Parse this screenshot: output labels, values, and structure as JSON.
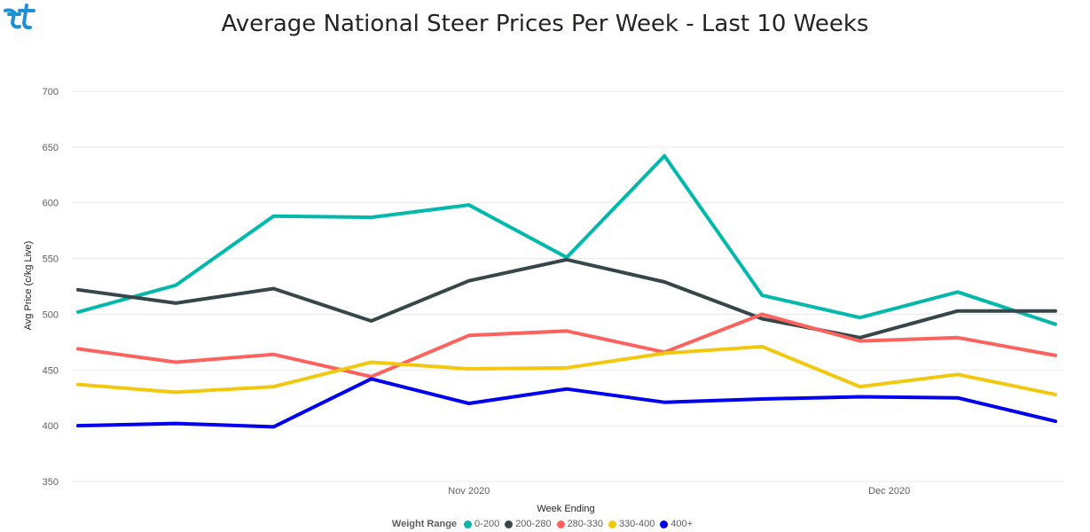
{
  "chart_data": {
    "type": "line",
    "title": "Average National Steer Prices Per Week - Last 10 Weeks",
    "xlabel": "Week Ending",
    "ylabel": "Avg Price (c/kg Live)",
    "ylim": [
      350,
      700
    ],
    "yticks": [
      350,
      400,
      450,
      500,
      550,
      600,
      650,
      700
    ],
    "x_tick_labels": [
      {
        "label": "Nov 2020",
        "index": 4.0
      },
      {
        "label": "Dec 2020",
        "index": 8.3
      }
    ],
    "points": 11,
    "legend_title": "Weight Range",
    "legend_position": "bottom",
    "grid": true,
    "series": [
      {
        "name": "0-200",
        "color": "#01B8AA",
        "values": [
          502,
          526,
          588,
          587,
          598,
          551,
          642,
          517,
          497,
          520,
          491
        ]
      },
      {
        "name": "200-280",
        "color": "#374649",
        "values": [
          522,
          510,
          523,
          494,
          530,
          549,
          529,
          496,
          479,
          503,
          503
        ]
      },
      {
        "name": "280-330",
        "color": "#FD625E",
        "values": [
          469,
          457,
          464,
          444,
          481,
          485,
          466,
          500,
          476,
          479,
          463
        ]
      },
      {
        "name": "330-400",
        "color": "#F2C80F",
        "values": [
          437,
          430,
          435,
          457,
          451,
          452,
          465,
          471,
          435,
          446,
          428
        ]
      },
      {
        "name": "400+",
        "color": "#0000EE",
        "values": [
          400,
          402,
          399,
          442,
          420,
          433,
          421,
          424,
          426,
          425,
          404
        ]
      }
    ]
  }
}
